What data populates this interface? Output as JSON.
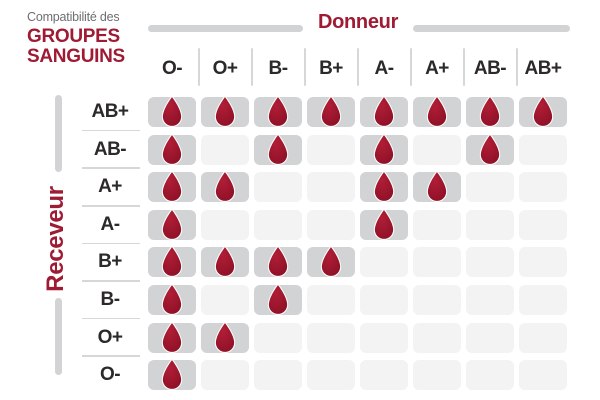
{
  "title": {
    "kicker": "Compatibilité des",
    "line1": "GROUPES",
    "line2": "SANGUINS"
  },
  "axes": {
    "donor_label": "Donneur",
    "receiver_label": "Receveur"
  },
  "chart_data": {
    "type": "table",
    "title": "Compatibilité des GROUPES SANGUINS",
    "columns_axis_label": "Donneur",
    "rows_axis_label": "Receveur",
    "columns": [
      "O-",
      "O+",
      "B-",
      "B+",
      "A-",
      "A+",
      "AB-",
      "AB+"
    ],
    "rows": [
      "AB+",
      "AB-",
      "A+",
      "A-",
      "B+",
      "B-",
      "O+",
      "O-"
    ],
    "cell_marker": "blood-drop-icon",
    "matrix": [
      [
        1,
        1,
        1,
        1,
        1,
        1,
        1,
        1
      ],
      [
        1,
        0,
        1,
        0,
        1,
        0,
        1,
        0
      ],
      [
        1,
        1,
        0,
        0,
        1,
        1,
        0,
        0
      ],
      [
        1,
        0,
        0,
        0,
        1,
        0,
        0,
        0
      ],
      [
        1,
        1,
        1,
        1,
        0,
        0,
        0,
        0
      ],
      [
        1,
        0,
        1,
        0,
        0,
        0,
        0,
        0
      ],
      [
        1,
        1,
        0,
        0,
        0,
        0,
        0,
        0
      ],
      [
        1,
        0,
        0,
        0,
        0,
        0,
        0,
        0
      ]
    ]
  },
  "colors": {
    "accent_red": "#9e1b33",
    "drop_red": "#b01e36",
    "drop_red_dark": "#8c1026",
    "cell_filled": "#d1d3d4",
    "cell_empty": "#f3f3f4",
    "bar_gray": "#d1d3d4",
    "separator_gray": "#d6d7d8",
    "kicker_gray": "#6d6e71",
    "label_dark": "#2b2a29",
    "background": "#ffffff"
  }
}
